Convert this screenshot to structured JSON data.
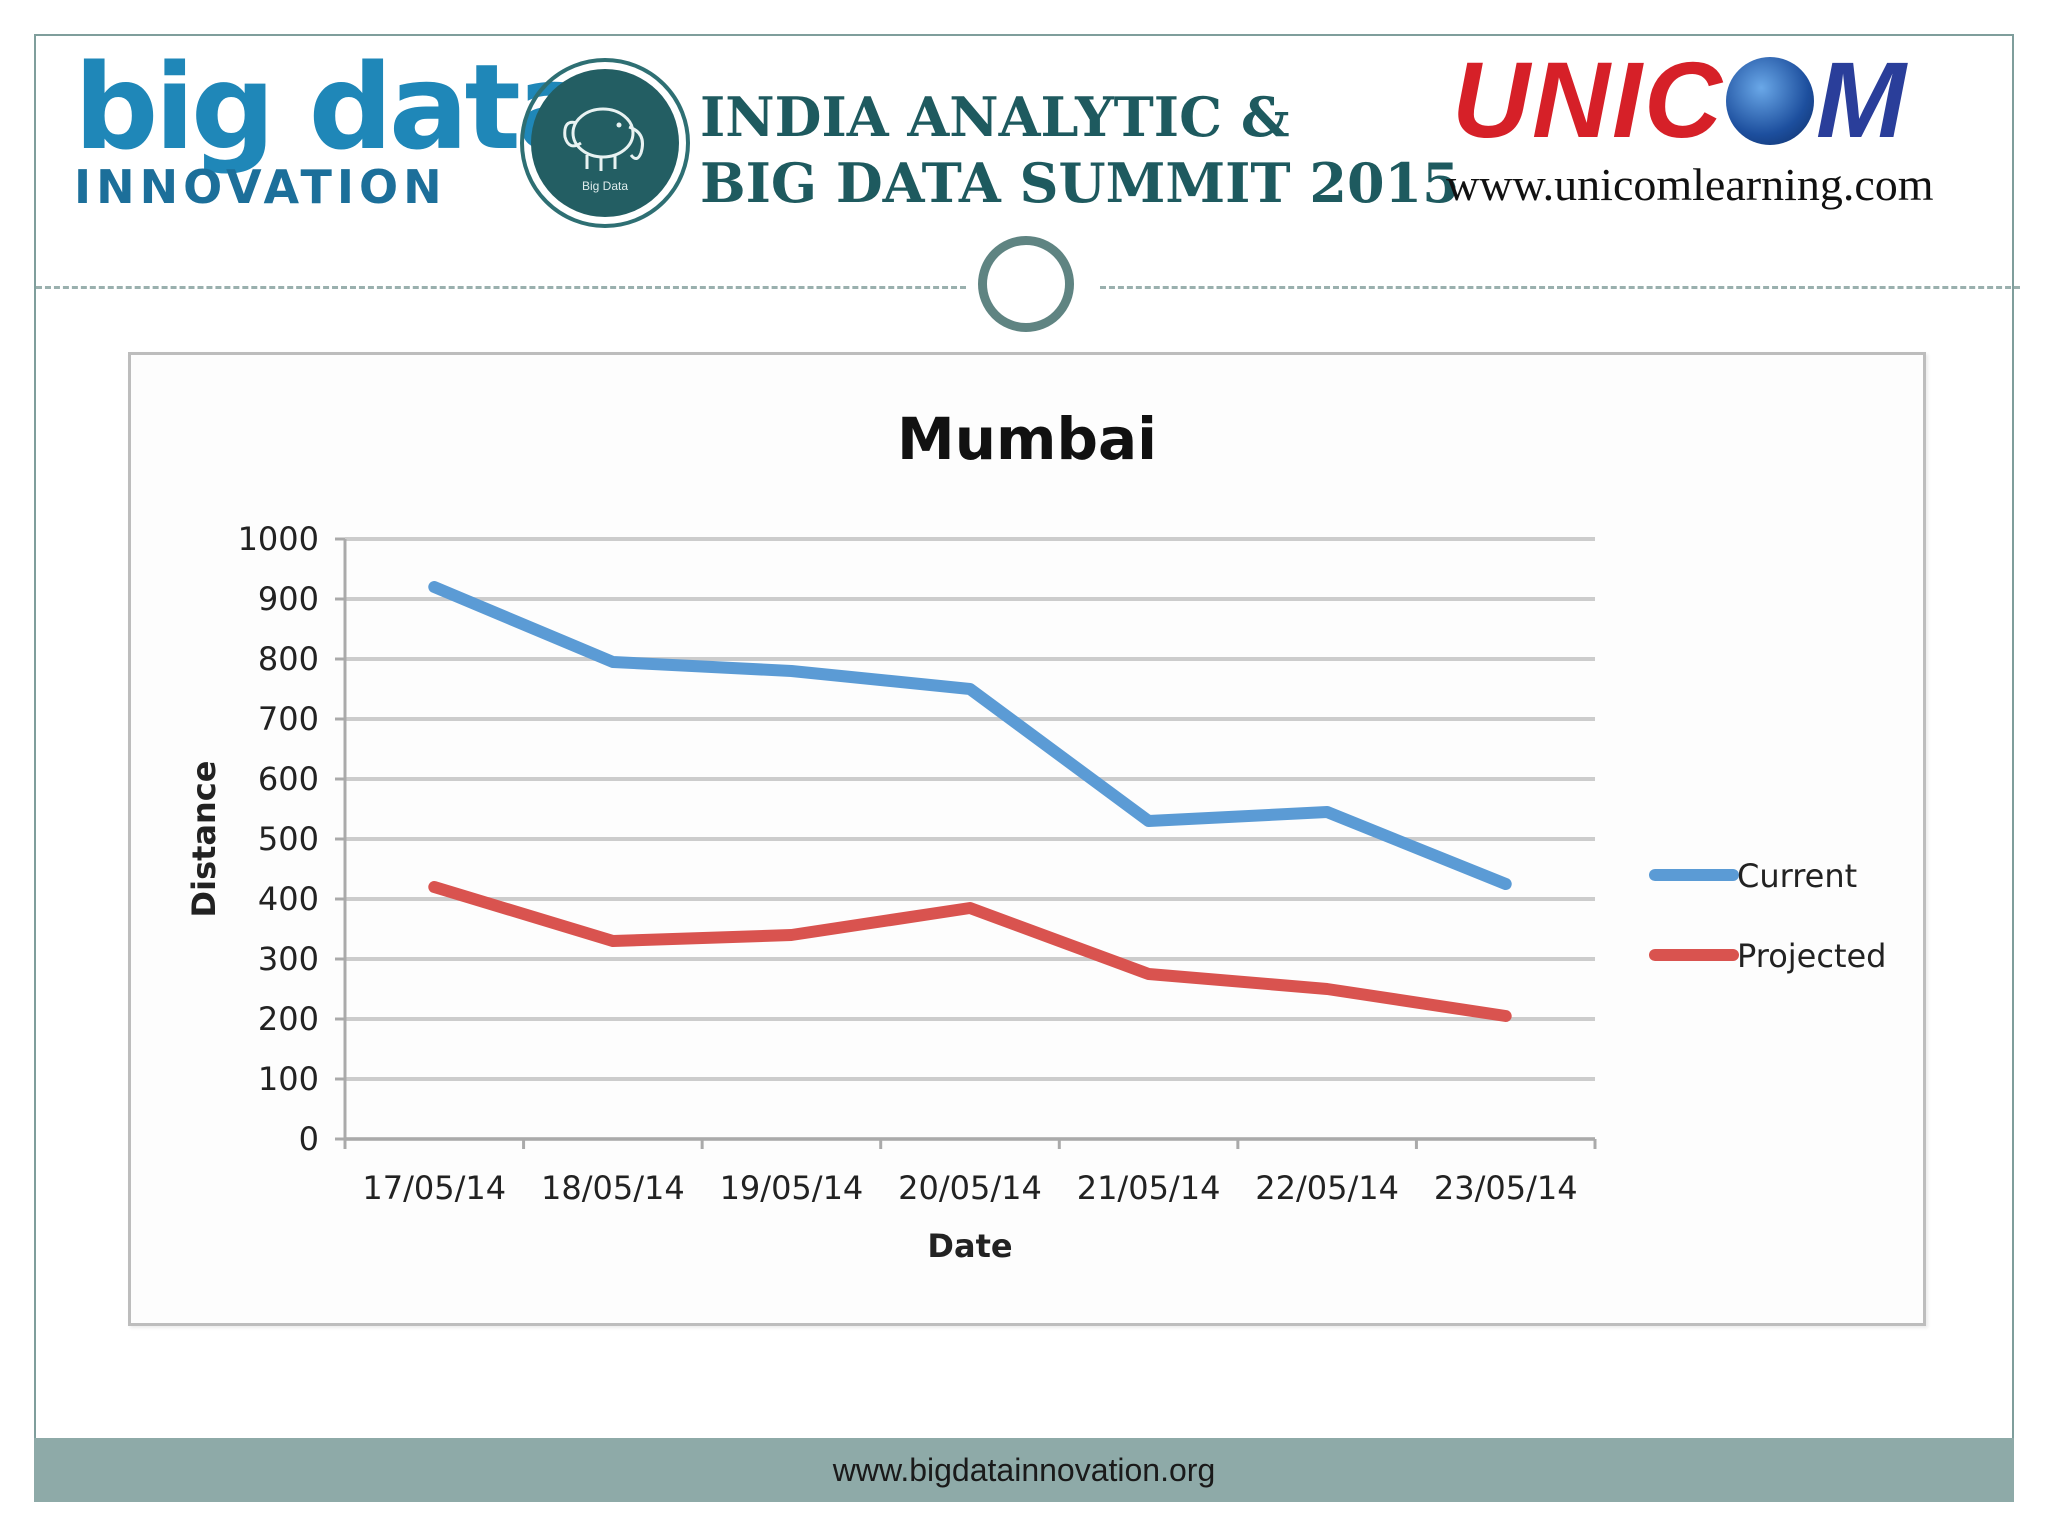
{
  "header": {
    "logo_left_main": "big data",
    "logo_left_sub": "INNOVATION",
    "badge_text": "Big Data",
    "summit_line1": "INDIA ANALYTIC &",
    "summit_line2": "BIG DATA SUMMIT 2015",
    "unicom_url": "www.unicomlearning.com"
  },
  "footer": {
    "url": "www.bigdatainnovation.org"
  },
  "colors": {
    "current": "#5b9bd5",
    "projected": "#d9534f",
    "accent": "#8eaaa8"
  },
  "chart_data": {
    "type": "line",
    "title": "Mumbai",
    "xlabel": "Date",
    "ylabel": "Distance",
    "categories": [
      "17/05/14",
      "18/05/14",
      "19/05/14",
      "20/05/14",
      "21/05/14",
      "22/05/14",
      "23/05/14"
    ],
    "ylim": [
      0,
      1000
    ],
    "yticks": [
      0,
      100,
      200,
      300,
      400,
      500,
      600,
      700,
      800,
      900,
      1000
    ],
    "grid": true,
    "legend_position": "right",
    "series": [
      {
        "name": "Current",
        "values": [
          920,
          795,
          780,
          750,
          530,
          545,
          425
        ]
      },
      {
        "name": "Projected",
        "values": [
          420,
          330,
          340,
          385,
          275,
          250,
          205
        ]
      }
    ]
  }
}
